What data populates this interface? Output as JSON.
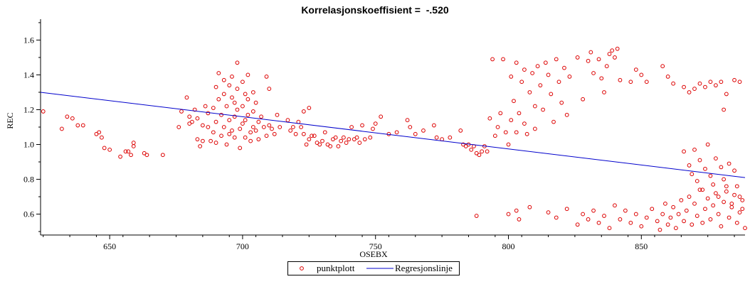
{
  "chart_data": {
    "type": "scatter",
    "title": "Korrelasjonskoeffisient =  -.520",
    "xlabel": "OSEBX",
    "ylabel": "REC",
    "xlim": [
      624,
      889
    ],
    "ylim": [
      0.48,
      1.72
    ],
    "xticks": [
      650,
      700,
      750,
      800,
      850
    ],
    "xtick_labels": [
      "650",
      "700",
      "750",
      "800",
      "850"
    ],
    "yticks": [
      0.6,
      0.8,
      1.0,
      1.2,
      1.4,
      1.6
    ],
    "ytick_labels": [
      "0.6",
      "0.8",
      "1.0",
      "1.2",
      "1.4",
      "1.6"
    ],
    "grid": false,
    "legend_position": "bottom",
    "series": [
      {
        "name": "punktplott",
        "kind": "scatter",
        "color": "#dd0000",
        "marker": "open-circle",
        "points": [
          [
            625,
            1.19
          ],
          [
            632,
            1.09
          ],
          [
            634,
            1.16
          ],
          [
            636,
            1.15
          ],
          [
            638,
            1.11
          ],
          [
            640,
            1.11
          ],
          [
            645,
            1.06
          ],
          [
            646,
            1.07
          ],
          [
            647,
            1.04
          ],
          [
            648,
            0.98
          ],
          [
            650,
            0.97
          ],
          [
            654,
            0.93
          ],
          [
            656,
            0.96
          ],
          [
            657,
            0.96
          ],
          [
            658,
            0.94
          ],
          [
            659,
            0.99
          ],
          [
            659,
            1.01
          ],
          [
            663,
            0.95
          ],
          [
            664,
            0.94
          ],
          [
            670,
            0.94
          ],
          [
            676,
            1.1
          ],
          [
            677,
            1.19
          ],
          [
            679,
            1.27
          ],
          [
            680,
            1.16
          ],
          [
            680,
            1.12
          ],
          [
            681,
            1.13
          ],
          [
            682,
            1.2
          ],
          [
            683,
            1.15
          ],
          [
            683,
            1.03
          ],
          [
            684,
            0.99
          ],
          [
            685,
            1.11
          ],
          [
            685,
            1.02
          ],
          [
            686,
            1.22
          ],
          [
            687,
            1.18
          ],
          [
            687,
            1.1
          ],
          [
            688,
            1.02
          ],
          [
            689,
            1.21
          ],
          [
            689,
            1.07
          ],
          [
            690,
            1.33
          ],
          [
            690,
            1.13
          ],
          [
            690,
            1.01
          ],
          [
            691,
            1.41
          ],
          [
            691,
            1.26
          ],
          [
            692,
            1.17
          ],
          [
            692,
            1.05
          ],
          [
            693,
            1.37
          ],
          [
            693,
            1.29
          ],
          [
            693,
            1.1
          ],
          [
            694,
            1.22
          ],
          [
            694,
            1.0
          ],
          [
            695,
            1.34
          ],
          [
            695,
            1.14
          ],
          [
            695,
            1.06
          ],
          [
            696,
            1.39
          ],
          [
            696,
            1.27
          ],
          [
            696,
            1.08
          ],
          [
            697,
            1.24
          ],
          [
            697,
            1.16
          ],
          [
            697,
            1.04
          ],
          [
            698,
            1.47
          ],
          [
            698,
            1.32
          ],
          [
            698,
            1.2
          ],
          [
            699,
            1.09
          ],
          [
            699,
            0.98
          ],
          [
            700,
            1.36
          ],
          [
            700,
            1.22
          ],
          [
            700,
            1.12
          ],
          [
            701,
            1.29
          ],
          [
            701,
            1.14
          ],
          [
            701,
            1.04
          ],
          [
            702,
            1.4
          ],
          [
            702,
            1.26
          ],
          [
            702,
            1.17
          ],
          [
            703,
            1.07
          ],
          [
            703,
            1.02
          ],
          [
            704,
            1.3
          ],
          [
            704,
            1.19
          ],
          [
            704,
            1.1
          ],
          [
            705,
            1.24
          ],
          [
            705,
            1.08
          ],
          [
            706,
            1.13
          ],
          [
            706,
            1.03
          ],
          [
            707,
            1.16
          ],
          [
            708,
            1.1
          ],
          [
            709,
            1.39
          ],
          [
            709,
            1.05
          ],
          [
            710,
            1.32
          ],
          [
            710,
            1.11
          ],
          [
            711,
            1.09
          ],
          [
            712,
            1.06
          ],
          [
            713,
            1.17
          ],
          [
            714,
            1.1
          ],
          [
            717,
            1.14
          ],
          [
            718,
            1.08
          ],
          [
            719,
            1.1
          ],
          [
            720,
            1.06
          ],
          [
            721,
            1.13
          ],
          [
            722,
            1.1
          ],
          [
            723,
            1.19
          ],
          [
            723,
            1.06
          ],
          [
            724,
            1.0
          ],
          [
            725,
            1.21
          ],
          [
            725,
            1.03
          ],
          [
            726,
            1.05
          ],
          [
            727,
            1.05
          ],
          [
            728,
            1.01
          ],
          [
            729,
            1.0
          ],
          [
            730,
            1.02
          ],
          [
            731,
            1.07
          ],
          [
            732,
            1.0
          ],
          [
            733,
            0.99
          ],
          [
            734,
            1.03
          ],
          [
            735,
            1.04
          ],
          [
            736,
            0.99
          ],
          [
            737,
            1.02
          ],
          [
            738,
            1.04
          ],
          [
            739,
            1.01
          ],
          [
            740,
            1.03
          ],
          [
            741,
            1.1
          ],
          [
            742,
            1.03
          ],
          [
            743,
            1.04
          ],
          [
            744,
            1.01
          ],
          [
            745,
            1.11
          ],
          [
            746,
            1.03
          ],
          [
            748,
            1.04
          ],
          [
            749,
            1.09
          ],
          [
            750,
            1.12
          ],
          [
            752,
            1.16
          ],
          [
            755,
            1.06
          ],
          [
            758,
            1.07
          ],
          [
            762,
            1.14
          ],
          [
            763,
            1.1
          ],
          [
            765,
            1.06
          ],
          [
            768,
            1.08
          ],
          [
            772,
            1.11
          ],
          [
            773,
            1.04
          ],
          [
            775,
            1.03
          ],
          [
            778,
            1.04
          ],
          [
            782,
            1.08
          ],
          [
            783,
            1.0
          ],
          [
            784,
            0.99
          ],
          [
            785,
            1.0
          ],
          [
            786,
            0.97
          ],
          [
            787,
            0.99
          ],
          [
            788,
            0.95
          ],
          [
            789,
            0.94
          ],
          [
            790,
            0.96
          ],
          [
            791,
            0.99
          ],
          [
            792,
            0.96
          ],
          [
            793,
            1.15
          ],
          [
            794,
            1.49
          ],
          [
            795,
            1.05
          ],
          [
            796,
            1.1
          ],
          [
            797,
            1.18
          ],
          [
            798,
            1.49
          ],
          [
            799,
            1.07
          ],
          [
            800,
            1.0
          ],
          [
            801,
            1.14
          ],
          [
            801,
            1.39
          ],
          [
            802,
            1.25
          ],
          [
            803,
            1.07
          ],
          [
            803,
            1.47
          ],
          [
            804,
            1.18
          ],
          [
            805,
            1.36
          ],
          [
            806,
            1.12
          ],
          [
            806,
            1.43
          ],
          [
            807,
            1.06
          ],
          [
            808,
            1.3
          ],
          [
            809,
            1.41
          ],
          [
            810,
            1.22
          ],
          [
            810,
            1.09
          ],
          [
            811,
            1.45
          ],
          [
            812,
            1.34
          ],
          [
            813,
            1.2
          ],
          [
            814,
            1.47
          ],
          [
            815,
            1.4
          ],
          [
            816,
            1.29
          ],
          [
            817,
            1.13
          ],
          [
            818,
            1.49
          ],
          [
            819,
            1.36
          ],
          [
            820,
            1.24
          ],
          [
            821,
            1.44
          ],
          [
            822,
            1.17
          ],
          [
            823,
            1.39
          ],
          [
            826,
            1.5
          ],
          [
            828,
            1.26
          ],
          [
            830,
            1.48
          ],
          [
            831,
            1.53
          ],
          [
            832,
            1.41
          ],
          [
            834,
            1.49
          ],
          [
            835,
            1.38
          ],
          [
            836,
            1.3
          ],
          [
            837,
            1.45
          ],
          [
            838,
            1.52
          ],
          [
            839,
            1.54
          ],
          [
            840,
            1.5
          ],
          [
            841,
            1.55
          ],
          [
            842,
            1.37
          ],
          [
            846,
            1.36
          ],
          [
            848,
            1.43
          ],
          [
            850,
            1.4
          ],
          [
            852,
            1.36
          ],
          [
            858,
            1.45
          ],
          [
            860,
            1.39
          ],
          [
            862,
            1.35
          ],
          [
            866,
            1.33
          ],
          [
            868,
            1.3
          ],
          [
            870,
            1.32
          ],
          [
            872,
            1.35
          ],
          [
            874,
            1.33
          ],
          [
            876,
            1.36
          ],
          [
            878,
            1.34
          ],
          [
            880,
            1.36
          ],
          [
            882,
            1.29
          ],
          [
            885,
            1.37
          ],
          [
            887,
            1.36
          ],
          [
            866,
            0.96
          ],
          [
            868,
            0.88
          ],
          [
            869,
            0.83
          ],
          [
            870,
            0.97
          ],
          [
            871,
            0.79
          ],
          [
            872,
            0.91
          ],
          [
            873,
            0.74
          ],
          [
            874,
            0.86
          ],
          [
            875,
            1.0
          ],
          [
            876,
            0.82
          ],
          [
            877,
            0.77
          ],
          [
            878,
            0.92
          ],
          [
            879,
            0.7
          ],
          [
            880,
            0.87
          ],
          [
            881,
            1.2
          ],
          [
            881,
            0.8
          ],
          [
            882,
            0.73
          ],
          [
            883,
            0.89
          ],
          [
            884,
            0.66
          ],
          [
            885,
            0.85
          ],
          [
            886,
            0.76
          ],
          [
            887,
            0.7
          ],
          [
            888,
            0.63
          ],
          [
            788,
            0.59
          ],
          [
            800,
            0.6
          ],
          [
            803,
            0.62
          ],
          [
            804,
            0.57
          ],
          [
            808,
            0.64
          ],
          [
            815,
            0.61
          ],
          [
            818,
            0.58
          ],
          [
            822,
            0.63
          ],
          [
            826,
            0.54
          ],
          [
            828,
            0.6
          ],
          [
            830,
            0.57
          ],
          [
            832,
            0.62
          ],
          [
            834,
            0.55
          ],
          [
            836,
            0.59
          ],
          [
            838,
            0.52
          ],
          [
            840,
            0.65
          ],
          [
            842,
            0.57
          ],
          [
            844,
            0.62
          ],
          [
            846,
            0.55
          ],
          [
            848,
            0.6
          ],
          [
            850,
            0.53
          ],
          [
            852,
            0.58
          ],
          [
            854,
            0.63
          ],
          [
            856,
            0.56
          ],
          [
            857,
            0.51
          ],
          [
            858,
            0.6
          ],
          [
            859,
            0.66
          ],
          [
            860,
            0.54
          ],
          [
            861,
            0.58
          ],
          [
            862,
            0.64
          ],
          [
            863,
            0.52
          ],
          [
            864,
            0.6
          ],
          [
            865,
            0.68
          ],
          [
            866,
            0.56
          ],
          [
            867,
            0.62
          ],
          [
            868,
            0.7
          ],
          [
            869,
            0.54
          ],
          [
            870,
            0.66
          ],
          [
            871,
            0.59
          ],
          [
            872,
            0.74
          ],
          [
            873,
            0.55
          ],
          [
            874,
            0.63
          ],
          [
            875,
            0.69
          ],
          [
            876,
            0.57
          ],
          [
            877,
            0.65
          ],
          [
            878,
            0.72
          ],
          [
            879,
            0.6
          ],
          [
            880,
            0.53
          ],
          [
            881,
            0.67
          ],
          [
            882,
            0.76
          ],
          [
            883,
            0.58
          ],
          [
            884,
            0.64
          ],
          [
            885,
            0.71
          ],
          [
            886,
            0.55
          ],
          [
            887,
            0.61
          ],
          [
            888,
            0.68
          ],
          [
            889,
            0.52
          ]
        ]
      },
      {
        "name": "Regresjonslinje",
        "kind": "line",
        "color": "#0000cc",
        "points": [
          [
            624,
            1.3
          ],
          [
            889,
            0.81
          ]
        ]
      }
    ]
  }
}
